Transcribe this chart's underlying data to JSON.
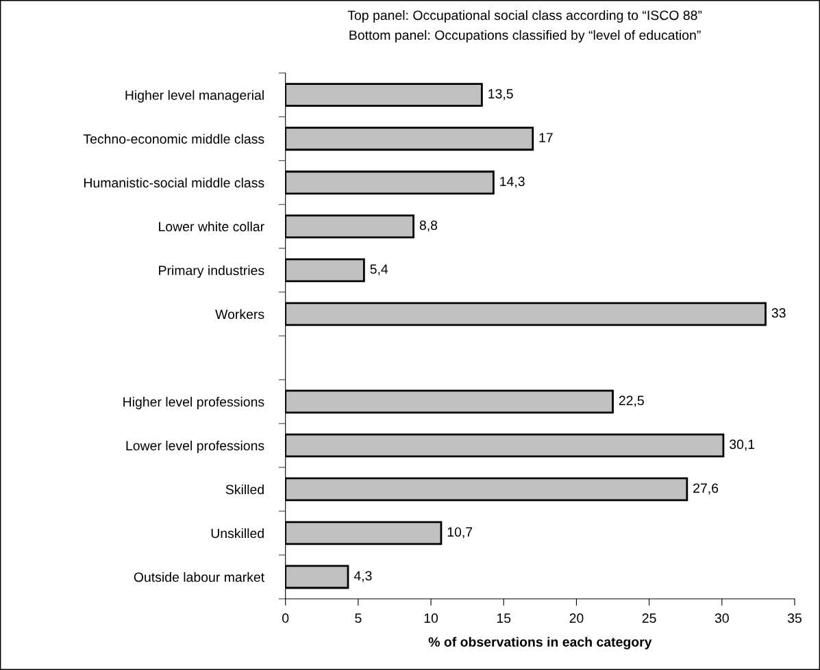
{
  "chart_data": {
    "type": "bar",
    "orientation": "horizontal",
    "title": "Top panel: Occupational social class according to “ISCO 88”",
    "subtitle": "Bottom panel: Occupations classified by “level of education”",
    "xlabel": "% of observations in each category",
    "categories": [
      "Higher level managerial",
      "Techno-economic middle class",
      "Humanistic-social middle class",
      "Lower white collar",
      "Primary industries",
      "Workers",
      null,
      "Higher level professions",
      "Lower level professions",
      "Skilled",
      "Unskilled",
      "Outside labour market"
    ],
    "values": [
      13.5,
      17,
      14.3,
      8.8,
      5.4,
      33,
      null,
      22.5,
      30.1,
      27.6,
      10.7,
      4.3
    ],
    "value_labels": [
      "13,5",
      "17",
      "14,3",
      "8,8",
      "5,4",
      "33",
      null,
      "22,5",
      "30,1",
      "27,6",
      "10,7",
      "4,3"
    ],
    "color": "#c0c0c0",
    "xlim": [
      0,
      35
    ],
    "xticks": [
      0,
      5,
      10,
      15,
      20,
      25,
      30,
      35
    ],
    "grid": false,
    "legend": false
  }
}
